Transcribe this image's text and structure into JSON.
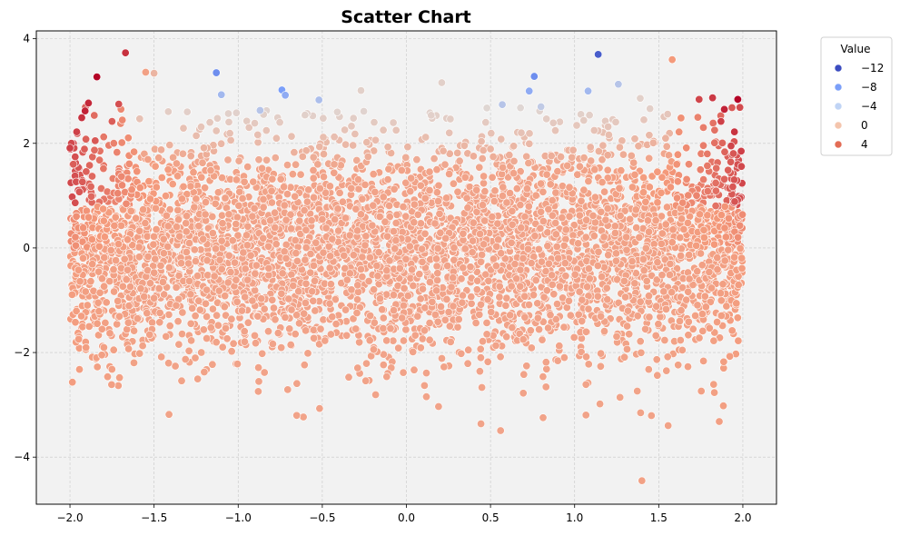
{
  "chart_data": {
    "type": "scatter",
    "title": "Scatter Chart",
    "xlabel": "",
    "ylabel": "",
    "xlim": [
      -2.2,
      2.2
    ],
    "ylim": [
      -4.9,
      4.15
    ],
    "x_ticks": [
      -2.0,
      -1.5,
      -1.0,
      -0.5,
      0.0,
      0.5,
      1.0,
      1.5,
      2.0
    ],
    "x_tick_labels": [
      "−2.0",
      "−1.5",
      "−1.0",
      "−0.5",
      "0.0",
      "0.5",
      "1.0",
      "1.5",
      "2.0"
    ],
    "y_ticks": [
      -4,
      -2,
      0,
      2,
      4
    ],
    "y_tick_labels": [
      "−4",
      "−2",
      "0",
      "2",
      "4"
    ],
    "grid": true,
    "grid_style": "dashed",
    "plot_background": "#f2f2f2",
    "colormap": "coolwarm",
    "hue_range": [
      -14,
      6
    ],
    "legend": {
      "title": "Value",
      "placement": "outside-top-right",
      "entries": [
        {
          "label": "−12",
          "value": -12,
          "color": "#3b4cc0"
        },
        {
          "label": "−8",
          "value": -8,
          "color": "#7b9ff9"
        },
        {
          "label": "−4",
          "value": -4,
          "color": "#c0d4f5"
        },
        {
          "label": "0",
          "value": 0,
          "color": "#f4c5ad"
        },
        {
          "label": "4",
          "value": 4,
          "color": "#e36c55"
        }
      ]
    },
    "points": [
      {
        "x": -1.84,
        "y": 3.27,
        "value": 6.0
      },
      {
        "x": -1.67,
        "y": 3.73,
        "value": 4.5
      },
      {
        "x": -1.91,
        "y": 2.62,
        "value": 5.0
      },
      {
        "x": -1.93,
        "y": 2.49,
        "value": 4.5
      },
      {
        "x": -1.89,
        "y": 2.77,
        "value": 4.8
      },
      {
        "x": -1.75,
        "y": 2.42,
        "value": 3.0
      },
      {
        "x": -1.71,
        "y": 2.75,
        "value": 3.5
      },
      {
        "x": -1.96,
        "y": 2.22,
        "value": 4.0
      },
      {
        "x": -2.0,
        "y": 1.91,
        "value": 4.0
      },
      {
        "x": -1.98,
        "y": 1.6,
        "value": 3.0
      },
      {
        "x": -1.85,
        "y": 2.05,
        "value": 3.2
      },
      {
        "x": 1.97,
        "y": 2.84,
        "value": 6.0
      },
      {
        "x": 1.89,
        "y": 2.65,
        "value": 5.0
      },
      {
        "x": 1.82,
        "y": 2.87,
        "value": 4.2
      },
      {
        "x": 1.74,
        "y": 2.84,
        "value": 3.8
      },
      {
        "x": 1.87,
        "y": 2.42,
        "value": 4.0
      },
      {
        "x": 1.95,
        "y": 2.22,
        "value": 4.4
      },
      {
        "x": 1.99,
        "y": 1.85,
        "value": 4.0
      },
      {
        "x": 1.93,
        "y": 1.95,
        "value": 3.8
      },
      {
        "x": 1.58,
        "y": 3.6,
        "value": 1.0
      },
      {
        "x": 1.14,
        "y": 3.7,
        "value": -13.0
      },
      {
        "x": -1.13,
        "y": 3.35,
        "value": -10.0
      },
      {
        "x": 0.76,
        "y": 3.28,
        "value": -10.0
      },
      {
        "x": -0.74,
        "y": 3.02,
        "value": -9.0
      },
      {
        "x": -0.72,
        "y": 2.92,
        "value": -8.0
      },
      {
        "x": -1.1,
        "y": 2.93,
        "value": -7.0
      },
      {
        "x": 0.73,
        "y": 3.0,
        "value": -8.0
      },
      {
        "x": 1.08,
        "y": 3.0,
        "value": -7.0
      },
      {
        "x": -0.52,
        "y": 2.83,
        "value": -6.5
      },
      {
        "x": 1.26,
        "y": 3.13,
        "value": -6.0
      },
      {
        "x": -0.87,
        "y": 2.63,
        "value": -6.0
      },
      {
        "x": 0.57,
        "y": 2.74,
        "value": -6.0
      },
      {
        "x": 0.8,
        "y": 2.7,
        "value": -5.5
      },
      {
        "x": -0.27,
        "y": 3.01,
        "value": -3.0
      },
      {
        "x": 0.21,
        "y": 3.16,
        "value": -3.0
      },
      {
        "x": -1.5,
        "y": 3.34,
        "value": -1.0
      },
      {
        "x": -1.55,
        "y": 3.36,
        "value": 0.5
      },
      {
        "x": 1.39,
        "y": 2.86,
        "value": -3.0
      },
      {
        "x": 1.4,
        "y": -4.45,
        "value": 0.5
      }
    ]
  }
}
